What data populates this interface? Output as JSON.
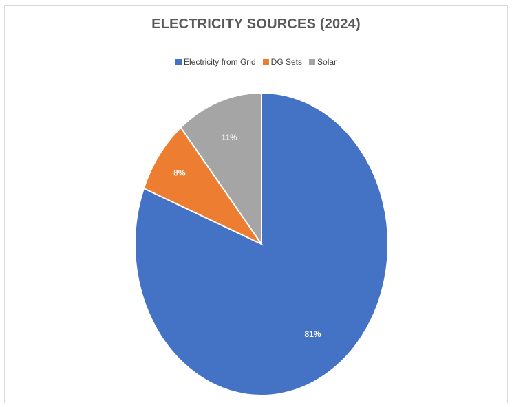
{
  "chart_data": {
    "type": "pie",
    "title": "ELECTRICITY SOURCES (2024)",
    "legend_position": "top",
    "categories": [
      "Electricity from Grid",
      "DG Sets",
      "Solar"
    ],
    "values": [
      81,
      8,
      11
    ],
    "labels": [
      "81%",
      "8%",
      "11%"
    ],
    "colors": [
      "#4472C4",
      "#ED7D31",
      "#A5A5A5"
    ],
    "start_angle_deg": 0,
    "direction": "clockwise"
  }
}
